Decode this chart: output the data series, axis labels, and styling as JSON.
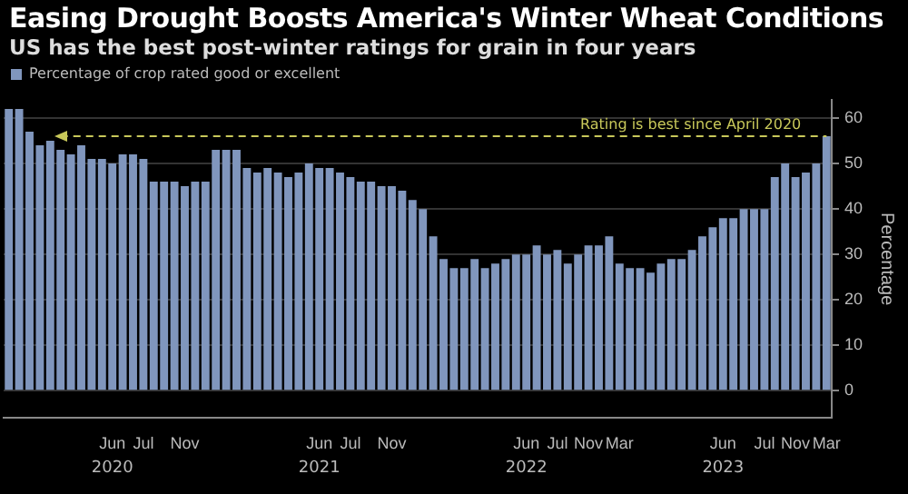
{
  "chart_data": {
    "type": "bar",
    "title": "Easing Drought Boosts America's Winter Wheat Conditions",
    "subtitle": "US has the best post-winter ratings for grain in four years",
    "categories": [
      null,
      null,
      null,
      null,
      null,
      null,
      null,
      null,
      null,
      null,
      "Jun",
      null,
      null,
      "Jul",
      null,
      null,
      null,
      "Nov",
      null,
      null,
      null,
      null,
      null,
      null,
      null,
      null,
      null,
      null,
      null,
      null,
      "Jun",
      null,
      null,
      "Jul",
      null,
      null,
      null,
      "Nov",
      null,
      null,
      null,
      null,
      null,
      null,
      null,
      null,
      null,
      null,
      null,
      null,
      "Jun",
      null,
      null,
      "Jul",
      null,
      null,
      "Nov",
      null,
      null,
      "Mar",
      null,
      null,
      null,
      null,
      null,
      null,
      null,
      null,
      null,
      "Jun",
      null,
      null,
      null,
      "Jul",
      null,
      null,
      "Nov",
      null,
      null,
      "Mar"
    ],
    "series": [
      {
        "name": "Percentage of crop rated good or excellent",
        "color": "#8096bd",
        "values": [
          62,
          62,
          57,
          54,
          55,
          53,
          52,
          54,
          51,
          51,
          50,
          52,
          52,
          51,
          46,
          46,
          46,
          45,
          46,
          46,
          53,
          53,
          53,
          49,
          48,
          49,
          48,
          47,
          48,
          50,
          49,
          49,
          48,
          47,
          46,
          46,
          45,
          45,
          44,
          42,
          40,
          34,
          29,
          27,
          27,
          29,
          27,
          28,
          29,
          30,
          30,
          32,
          30,
          31,
          28,
          30,
          32,
          32,
          34,
          28,
          27,
          27,
          26,
          28,
          29,
          29,
          31,
          34,
          36,
          38,
          38,
          40,
          40,
          40,
          47,
          50,
          47,
          48,
          50,
          56
        ]
      }
    ],
    "ylabel": "Percentage",
    "ylim": [
      -6,
      64
    ],
    "yticks": [
      0,
      10,
      20,
      30,
      40,
      50,
      60
    ],
    "grid": "y",
    "legend": "top left",
    "ref_lines": [
      {
        "axis": "y",
        "value": 56,
        "label": "Rating is best since April 2020",
        "color": "#c8c85a",
        "line_style": "dashed"
      }
    ],
    "annotations": [
      "2020",
      "2021",
      "2022",
      "2023"
    ]
  }
}
